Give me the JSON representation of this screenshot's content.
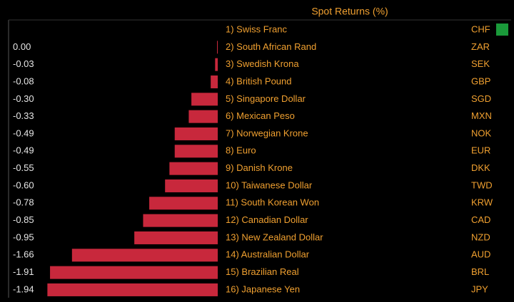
{
  "chart_data": {
    "type": "bar",
    "title": "Spot Returns (%)",
    "categories": [
      "1) Swiss Franc",
      "2) South African Rand",
      "3) Swedish Krona",
      "4) British Pound",
      "5) Singapore Dollar",
      "6) Mexican Peso",
      "7) Norwegian Krone",
      "8) Euro",
      "9) Danish Krone",
      "10) Taiwanese Dollar",
      "11) South Korean Won",
      "12) Canadian Dollar",
      "13) New Zealand Dollar",
      "14) Australian Dollar",
      "15) Brazilian Real",
      "16) Japanese Yen"
    ],
    "codes": [
      "CHF",
      "ZAR",
      "SEK",
      "GBP",
      "SGD",
      "MXN",
      "NOK",
      "EUR",
      "DKK",
      "TWD",
      "KRW",
      "CAD",
      "NZD",
      "AUD",
      "BRL",
      "JPY"
    ],
    "values": [
      null,
      0,
      -0.03,
      -0.08,
      -0.3,
      -0.33,
      -0.49,
      -0.49,
      -0.55,
      -0.6,
      -0.78,
      -0.85,
      -0.95,
      -1.66,
      -1.91,
      -1.94
    ],
    "value_labels": [
      null,
      "0.00",
      "-0.03",
      "-0.08",
      "-0.30",
      "-0.33",
      "-0.49",
      "-0.49",
      "-0.55",
      "-0.60",
      "-0.78",
      "-0.85",
      "-0.95",
      "-1.66",
      "-1.91",
      "-1.94"
    ],
    "color": "#c8283c",
    "positive_indicator_color": "#1a9a3a"
  }
}
